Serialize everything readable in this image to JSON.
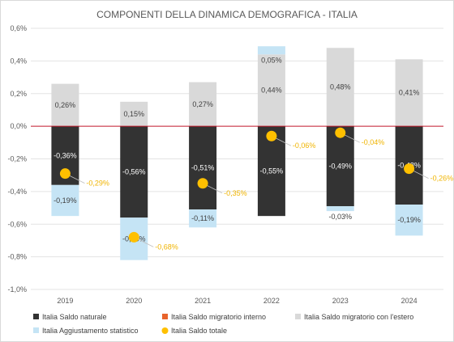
{
  "chart_data": {
    "type": "bar",
    "title": "COMPONENTI DELLA DINAMICA DEMOGRAFICA - ITALIA",
    "categories": [
      "2019",
      "2020",
      "2021",
      "2022",
      "2023",
      "2024"
    ],
    "ylim": [
      -1.0,
      0.6
    ],
    "yticks": [
      "-1,0%",
      "-0,8%",
      "-0,6%",
      "-0,4%",
      "-0,2%",
      "0,0%",
      "0,2%",
      "0,4%",
      "0,6%"
    ],
    "ytick_values": [
      -1.0,
      -0.8,
      -0.6,
      -0.4,
      -0.2,
      0.0,
      0.2,
      0.4,
      0.6
    ],
    "grid": true,
    "legend_position": "bottom",
    "series": [
      {
        "name": "Italia   Saldo naturale",
        "color": "#333333",
        "kind": "bar",
        "values": [
          -0.36,
          -0.56,
          -0.51,
          -0.55,
          -0.49,
          -0.48
        ],
        "labels": [
          "-0,36%",
          "-0,56%",
          "-0,51%",
          "-0,55%",
          "-0,49%",
          "-0,48%"
        ]
      },
      {
        "name": "Italia   Saldo migratorio interno",
        "color": "#e8642c",
        "kind": "bar",
        "values": [
          0,
          0,
          0,
          0,
          0,
          0
        ],
        "labels": [
          "",
          "",
          "",
          "",
          "",
          ""
        ]
      },
      {
        "name": "Italia   Saldo migratorio con l'estero",
        "color": "#d9d9d9",
        "kind": "bar",
        "values": [
          0.26,
          0.15,
          0.27,
          0.44,
          0.48,
          0.41
        ],
        "labels": [
          "0,26%",
          "0,15%",
          "0,27%",
          "0,44%",
          "0,48%",
          "0,41%"
        ]
      },
      {
        "name": "Italia   Aggiustamento statistico",
        "color": "#c5e4f5",
        "kind": "bar",
        "values": [
          -0.19,
          -0.26,
          -0.11,
          0.05,
          -0.03,
          -0.19
        ],
        "labels": [
          "-0,19%",
          "-0,26%",
          "-0,11%",
          "0,05%",
          "-0,03%",
          "-0,19%"
        ]
      },
      {
        "name": "Italia   Saldo totale",
        "color": "#ffc000",
        "kind": "point",
        "values": [
          -0.29,
          -0.68,
          -0.35,
          -0.06,
          -0.04,
          -0.26
        ],
        "labels": [
          "-0,29%",
          "-0,68%",
          "-0,35%",
          "-0,06%",
          "-0,04%",
          "-0,26%"
        ]
      }
    ],
    "zero_line_color": "#c0182a"
  }
}
